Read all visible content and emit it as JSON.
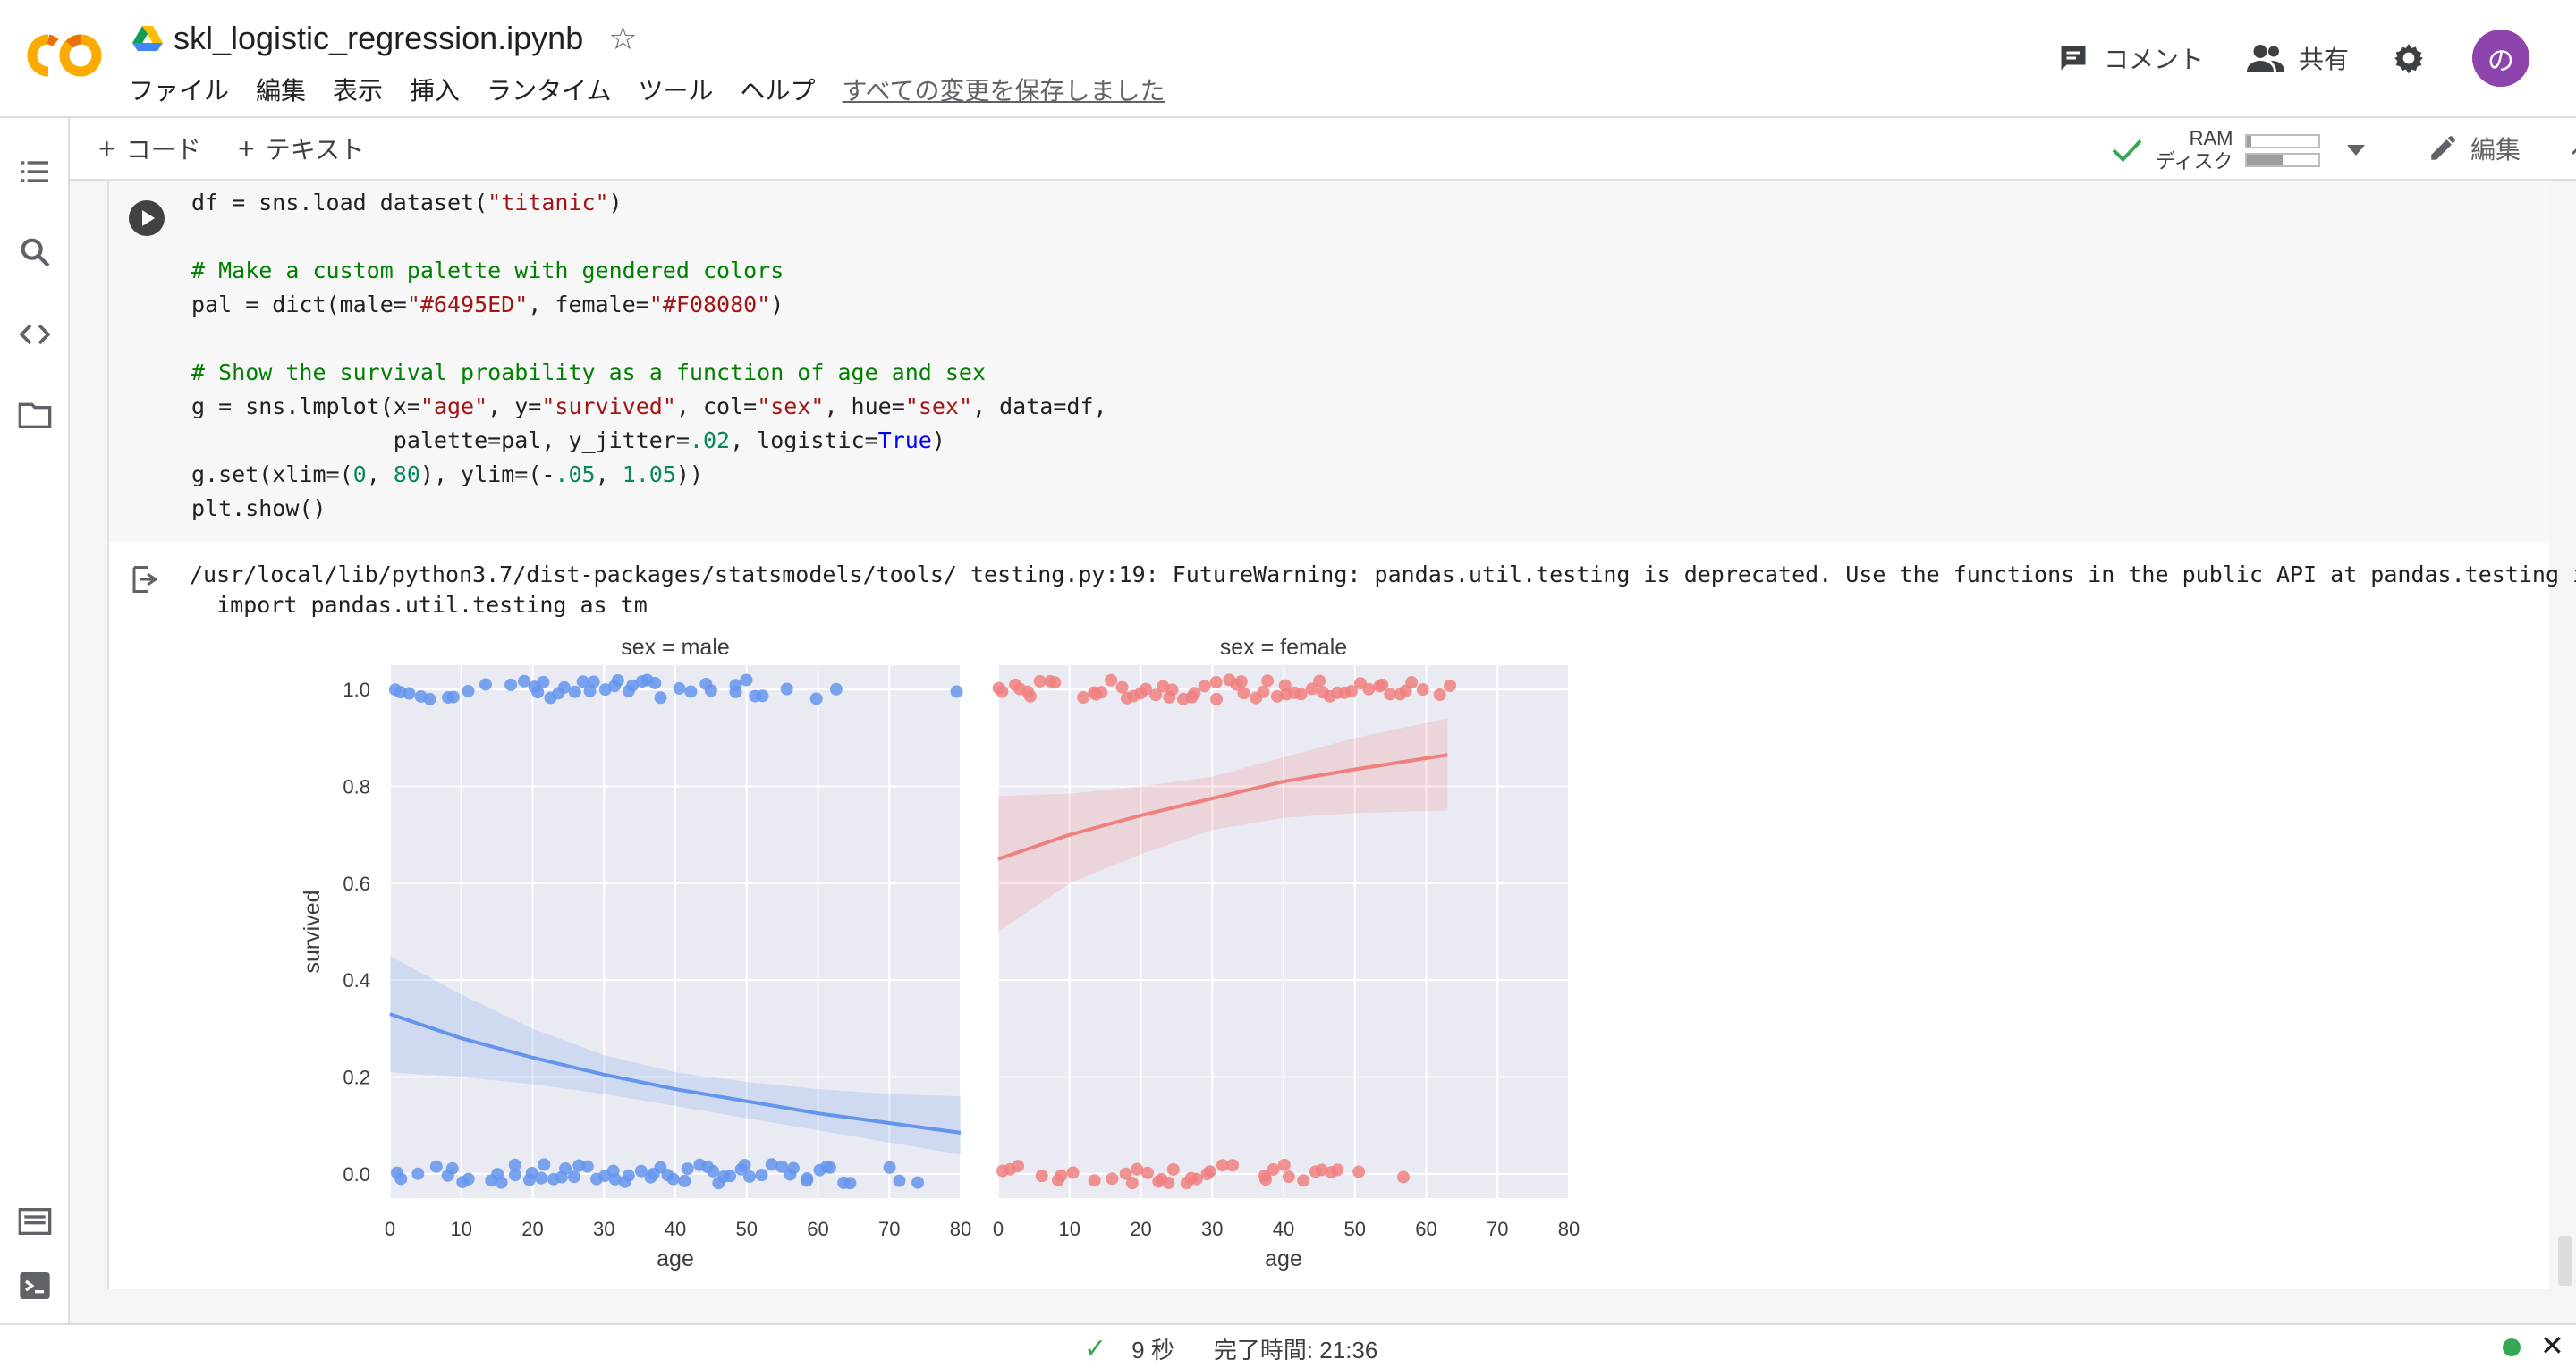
{
  "header": {
    "title": "skl_logistic_regression.ipynb",
    "menu": [
      "ファイル",
      "編集",
      "表示",
      "挿入",
      "ランタイム",
      "ツール",
      "ヘルプ"
    ],
    "save_status": "すべての変更を保存しました",
    "comment_label": "コメント",
    "share_label": "共有",
    "avatar_letter": "の"
  },
  "toolbar": {
    "add_code": "コード",
    "add_text": "テキスト",
    "ram_label": "RAM",
    "disk_label": "ディスク",
    "ram_usage": 0.06,
    "disk_usage": 0.5,
    "edit_label": "編集"
  },
  "cell": {
    "warning_line1": "/usr/local/lib/python3.7/dist-packages/statsmodels/tools/_testing.py:19: FutureWarning: pandas.util.testing is deprecated. Use the functions in the public API at pandas.testing instead.",
    "warning_line2": "  import pandas.util.testing as tm"
  },
  "chart_data": {
    "type": "scatter",
    "ylabel": "survived",
    "xlabel": "age",
    "xlim": [
      0,
      80
    ],
    "ylim": [
      -0.05,
      1.05
    ],
    "xticks": [
      "0",
      "10",
      "20",
      "30",
      "40",
      "50",
      "60",
      "70",
      "80"
    ],
    "yticks": [
      "0.0",
      "0.2",
      "0.4",
      "0.6",
      "0.8",
      "1.0"
    ],
    "grid": true,
    "panels": [
      {
        "title": "sex = male",
        "color": "#6495ED",
        "fit_x": [
          0,
          10,
          20,
          30,
          40,
          50,
          60,
          70,
          80
        ],
        "fit_y": [
          0.33,
          0.28,
          0.24,
          0.205,
          0.175,
          0.15,
          0.125,
          0.105,
          0.085
        ],
        "ci_lower": [
          0.21,
          0.2,
          0.185,
          0.165,
          0.14,
          0.115,
          0.09,
          0.065,
          0.04
        ],
        "ci_upper": [
          0.45,
          0.37,
          0.3,
          0.245,
          0.21,
          0.19,
          0.175,
          0.165,
          0.16
        ],
        "survived_ages": [
          1,
          2,
          3,
          4,
          6,
          8,
          9,
          11,
          14,
          17,
          19,
          20,
          21,
          22,
          23,
          24,
          25,
          26,
          27,
          28,
          29,
          30,
          31,
          32,
          33,
          34,
          35,
          36,
          37,
          38,
          40,
          42,
          44,
          45,
          48,
          49,
          50,
          51,
          52,
          56,
          60,
          62,
          80
        ],
        "died_ages": [
          1,
          2,
          4,
          7,
          8,
          9,
          10,
          11,
          14,
          15,
          16,
          17,
          18,
          19,
          20,
          21,
          22,
          23,
          24,
          25,
          26,
          27,
          28,
          29,
          30,
          31,
          32,
          33,
          34,
          35,
          36,
          37,
          38,
          39,
          40,
          41,
          42,
          43,
          44,
          45,
          46,
          47,
          48,
          49,
          50,
          51,
          52,
          54,
          55,
          56,
          57,
          58,
          59,
          60,
          61,
          62,
          64,
          65,
          70,
          71,
          74
        ]
      },
      {
        "title": "sex = female",
        "color": "#F08080",
        "fit_x": [
          0,
          10,
          20,
          30,
          40,
          50,
          63
        ],
        "fit_y": [
          0.65,
          0.7,
          0.74,
          0.775,
          0.81,
          0.835,
          0.865
        ],
        "ci_lower": [
          0.5,
          0.6,
          0.66,
          0.71,
          0.735,
          0.745,
          0.75
        ],
        "ci_upper": [
          0.78,
          0.785,
          0.8,
          0.82,
          0.86,
          0.9,
          0.94
        ],
        "survived_ages": [
          0,
          1,
          2,
          3,
          4,
          5,
          6,
          7,
          8,
          12,
          13,
          14,
          15,
          16,
          17,
          18,
          19,
          20,
          21,
          22,
          23,
          24,
          25,
          26,
          27,
          28,
          29,
          30,
          31,
          32,
          33,
          34,
          35,
          36,
          37,
          38,
          39,
          40,
          41,
          42,
          43,
          44,
          45,
          46,
          47,
          48,
          49,
          50,
          51,
          52,
          53,
          54,
          55,
          56,
          57,
          58,
          60,
          62,
          63
        ],
        "died_ages": [
          1,
          2,
          3,
          6,
          8,
          9,
          10,
          14,
          16,
          18,
          19,
          20,
          21,
          22,
          23,
          24,
          25,
          26,
          27,
          28,
          29,
          30,
          31,
          33,
          37,
          38,
          39,
          40,
          41,
          43,
          44,
          45,
          47,
          48,
          50,
          57
        ]
      }
    ]
  },
  "statusbar": {
    "duration": "9 秒",
    "completed": "完了時間: 21:36"
  }
}
